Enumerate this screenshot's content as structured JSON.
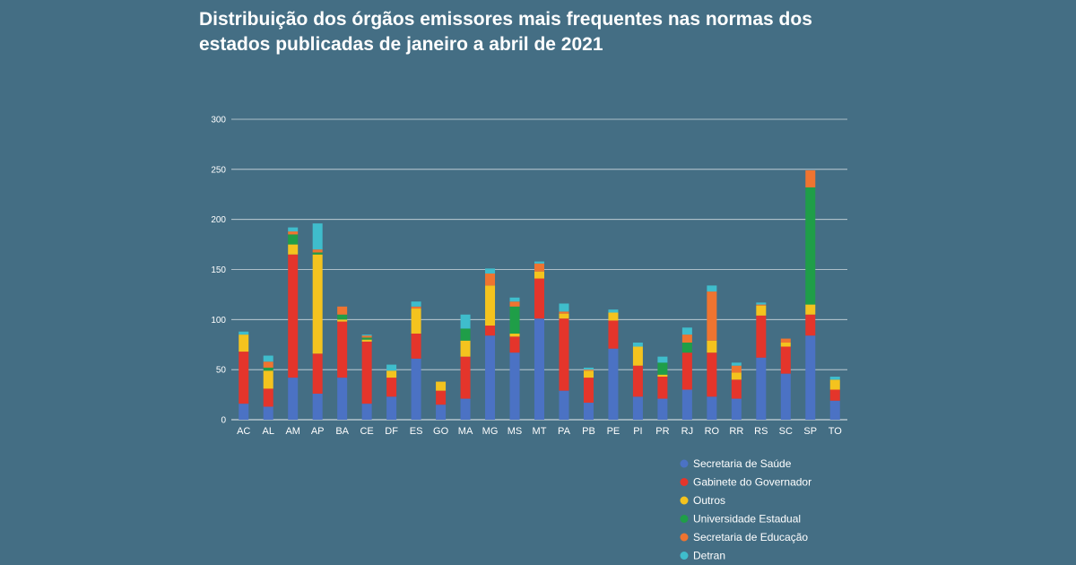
{
  "chart_data": {
    "type": "bar",
    "stacked": true,
    "title": "Distribuição dos órgãos emissores mais frequentes nas normas dos estados publicadas de janeiro a abril de 2021",
    "xlabel": "",
    "ylabel": "",
    "ylim": [
      0,
      300
    ],
    "yticks": [
      0,
      50,
      100,
      150,
      200,
      250,
      300
    ],
    "grid": true,
    "legend_position": "bottom-right",
    "categories": [
      "AC",
      "AL",
      "AM",
      "AP",
      "BA",
      "CE",
      "DF",
      "ES",
      "GO",
      "MA",
      "MG",
      "MS",
      "MT",
      "PA",
      "PB",
      "PE",
      "PI",
      "PR",
      "RJ",
      "RO",
      "RR",
      "RS",
      "SC",
      "SP",
      "TO"
    ],
    "series": [
      {
        "name": "Secretaria de Saúde",
        "color": "#4b72c4",
        "values": [
          16,
          13,
          42,
          26,
          42,
          16,
          23,
          61,
          15,
          21,
          84,
          67,
          101,
          29,
          17,
          71,
          23,
          21,
          30,
          23,
          21,
          62,
          46,
          84,
          19
        ]
      },
      {
        "name": "Gabinete do Governador",
        "color": "#e4352b",
        "values": [
          52,
          18,
          123,
          40,
          56,
          62,
          19,
          25,
          14,
          42,
          10,
          16,
          40,
          72,
          25,
          28,
          31,
          22,
          37,
          44,
          19,
          42,
          27,
          21,
          11
        ]
      },
      {
        "name": "Outros",
        "color": "#f4c31e",
        "values": [
          17,
          18,
          10,
          99,
          2,
          2,
          7,
          25,
          9,
          16,
          40,
          3,
          7,
          5,
          7,
          8,
          19,
          2,
          0,
          12,
          7,
          10,
          4,
          10,
          10
        ]
      },
      {
        "name": "Universidade Estadual",
        "color": "#1f9e48",
        "values": [
          0,
          3,
          10,
          2,
          5,
          2,
          0,
          0,
          0,
          12,
          0,
          27,
          0,
          0,
          0,
          0,
          0,
          12,
          10,
          0,
          0,
          0,
          0,
          117,
          0
        ]
      },
      {
        "name": "Secretaria de Educação",
        "color": "#ef7430",
        "values": [
          0,
          6,
          3,
          3,
          8,
          2,
          0,
          2,
          0,
          0,
          12,
          5,
          8,
          2,
          1,
          0,
          0,
          0,
          8,
          49,
          7,
          1,
          4,
          17,
          0
        ]
      },
      {
        "name": "Detran",
        "color": "#3fbdcc",
        "values": [
          3,
          6,
          4,
          26,
          0,
          1,
          6,
          5,
          0,
          14,
          5,
          4,
          2,
          8,
          2,
          3,
          4,
          6,
          7,
          6,
          3,
          2,
          0,
          0,
          3
        ]
      }
    ]
  }
}
